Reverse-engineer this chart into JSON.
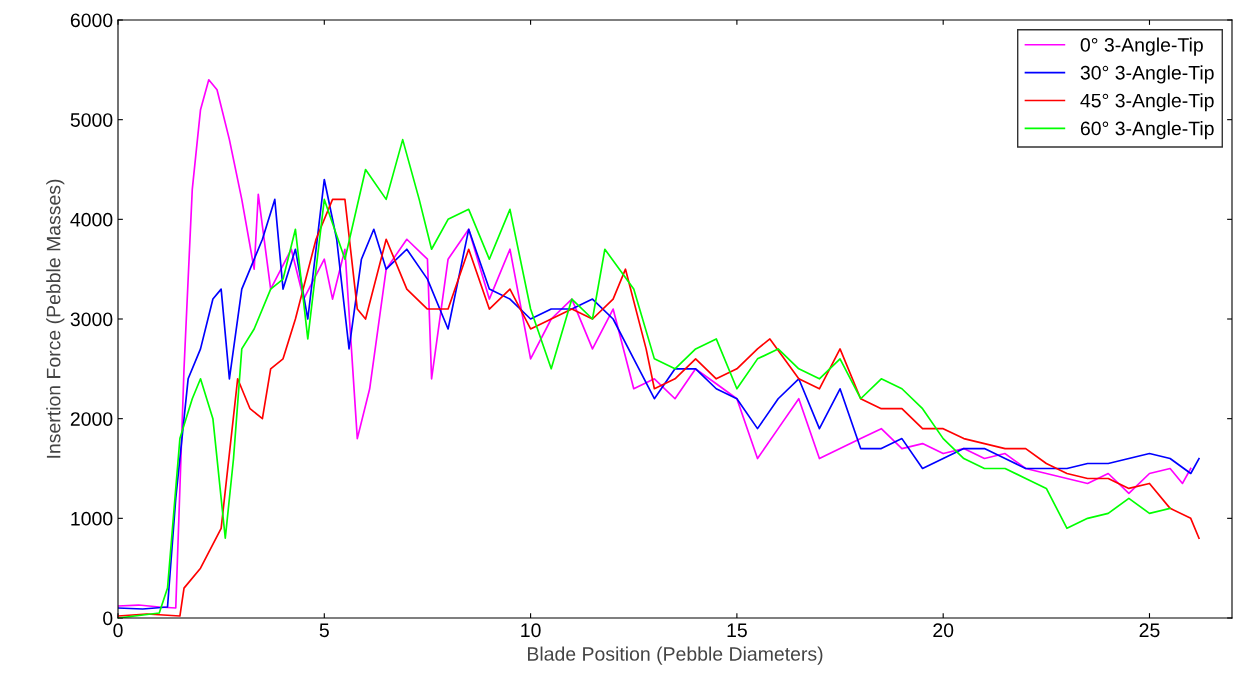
{
  "chart_data": {
    "type": "line",
    "xlabel": "Blade Position (Pebble Diameters)",
    "ylabel": "Insertion Force (Pebble Masses)",
    "xlim": [
      0,
      27
    ],
    "xticks": [
      0,
      5,
      10,
      15,
      20,
      25
    ],
    "ylim": [
      0,
      6000
    ],
    "yticks": [
      0,
      1000,
      2000,
      3000,
      4000,
      5000,
      6000
    ],
    "grid": false,
    "legend": "top right",
    "marker": "none",
    "line_style": "solid",
    "series": [
      {
        "name": "0° 3-Angle-Tip",
        "color": "#ff00ff",
        "x": [
          0,
          0.5,
          1,
          1.4,
          1.6,
          1.8,
          2.0,
          2.2,
          2.4,
          2.7,
          3.0,
          3.3,
          3.4,
          3.7,
          4.2,
          4.5,
          5,
          5.2,
          5.5,
          5.8,
          6.1,
          6.5,
          7,
          7.5,
          7.6,
          8,
          8.5,
          9,
          9.5,
          10,
          10.5,
          11,
          11.5,
          12,
          12.5,
          13,
          13.5,
          14,
          14.5,
          15,
          15.5,
          16,
          16.5,
          17,
          17.5,
          18,
          18.5,
          19,
          19.5,
          20,
          20.5,
          21,
          21.5,
          22,
          22.5,
          23,
          23.5,
          24,
          24.5,
          25,
          25.5,
          25.8,
          26
        ],
        "values": [
          120,
          130,
          110,
          100,
          2500,
          4300,
          5100,
          5400,
          5300,
          4800,
          4200,
          3500,
          4250,
          3300,
          3700,
          3200,
          3600,
          3200,
          3700,
          1800,
          2300,
          3500,
          3800,
          3600,
          2400,
          3600,
          3900,
          3200,
          3700,
          2600,
          3000,
          3200,
          2700,
          3100,
          2300,
          2400,
          2200,
          2500,
          2350,
          2200,
          1600,
          1900,
          2200,
          1600,
          1700,
          1800,
          1900,
          1700,
          1750,
          1650,
          1700,
          1600,
          1650,
          1500,
          1450,
          1400,
          1350,
          1450,
          1250,
          1450,
          1500,
          1350,
          1500
        ]
      },
      {
        "name": "30° 3-Angle-Tip",
        "color": "#0000ff",
        "x": [
          0,
          0.6,
          1.2,
          1.4,
          1.7,
          2.0,
          2.3,
          2.5,
          2.7,
          3.0,
          3.5,
          3.8,
          4.0,
          4.3,
          4.6,
          5.0,
          5.3,
          5.6,
          5.9,
          6.2,
          6.5,
          7,
          7.5,
          8,
          8.5,
          9,
          9.5,
          10,
          10.5,
          11,
          11.5,
          12,
          12.5,
          13,
          13.5,
          14,
          14.5,
          15,
          15.5,
          16,
          16.5,
          17,
          17.5,
          18,
          18.5,
          19,
          19.5,
          20,
          20.5,
          21,
          21.5,
          22,
          22.5,
          23,
          23.5,
          24,
          24.5,
          25,
          25.5,
          26,
          26.2
        ],
        "values": [
          100,
          90,
          110,
          1200,
          2400,
          2700,
          3200,
          3300,
          2400,
          3300,
          3800,
          4200,
          3300,
          3700,
          3000,
          4400,
          3800,
          2700,
          3600,
          3900,
          3500,
          3700,
          3400,
          2900,
          3900,
          3300,
          3200,
          3000,
          3100,
          3100,
          3200,
          3000,
          2600,
          2200,
          2500,
          2500,
          2300,
          2200,
          1900,
          2200,
          2400,
          1900,
          2300,
          1700,
          1700,
          1800,
          1500,
          1600,
          1700,
          1700,
          1600,
          1500,
          1500,
          1500,
          1550,
          1550,
          1600,
          1650,
          1600,
          1450,
          1600
        ]
      },
      {
        "name": "45° 3-Angle-Tip",
        "color": "#ff0000",
        "x": [
          0,
          0.7,
          1.5,
          1.6,
          2.0,
          2.5,
          2.9,
          3.2,
          3.5,
          3.7,
          4.0,
          4.3,
          4.8,
          5.2,
          5.5,
          5.8,
          6.0,
          6.5,
          7,
          7.5,
          8,
          8.5,
          9,
          9.5,
          10,
          10.5,
          11,
          11.5,
          12,
          12.3,
          12.8,
          13,
          13.5,
          14,
          14.5,
          15,
          15.5,
          15.8,
          16.5,
          17,
          17.5,
          18,
          18.5,
          19,
          19.5,
          20,
          20.5,
          21,
          21.5,
          22,
          22.5,
          23,
          23.5,
          24,
          24.5,
          25,
          25.5,
          26,
          26.2
        ],
        "values": [
          20,
          40,
          20,
          300,
          500,
          900,
          2400,
          2100,
          2000,
          2500,
          2600,
          3000,
          3800,
          4200,
          4200,
          3100,
          3000,
          3800,
          3300,
          3100,
          3100,
          3700,
          3100,
          3300,
          2900,
          3000,
          3100,
          3000,
          3200,
          3500,
          2700,
          2300,
          2400,
          2600,
          2400,
          2500,
          2700,
          2800,
          2400,
          2300,
          2700,
          2200,
          2100,
          2100,
          1900,
          1900,
          1800,
          1750,
          1700,
          1700,
          1550,
          1450,
          1400,
          1400,
          1300,
          1350,
          1100,
          1000,
          800
        ]
      },
      {
        "name": "60° 3-Angle-Tip",
        "color": "#00ff00",
        "x": [
          0,
          1,
          1.2,
          1.5,
          1.8,
          2.0,
          2.3,
          2.5,
          2.6,
          2.8,
          3.0,
          3.3,
          3.7,
          4.0,
          4.3,
          4.6,
          5.0,
          5.5,
          6.0,
          6.5,
          6.9,
          7.3,
          7.6,
          8.0,
          8.5,
          9,
          9.5,
          10,
          10.5,
          11,
          11.5,
          11.8,
          12.5,
          13,
          13.5,
          14,
          14.5,
          15,
          15.5,
          16,
          16.5,
          17,
          17.5,
          18,
          18.5,
          19,
          19.5,
          20,
          20.5,
          21,
          21.5,
          22,
          22.5,
          23,
          23.5,
          24,
          24.5,
          25,
          25.5
        ],
        "values": [
          0,
          50,
          300,
          1800,
          2200,
          2400,
          2000,
          1200,
          800,
          1600,
          2700,
          2900,
          3300,
          3400,
          3900,
          2800,
          4200,
          3600,
          4500,
          4200,
          4800,
          4200,
          3700,
          4000,
          4100,
          3600,
          4100,
          3100,
          2500,
          3200,
          3000,
          3700,
          3300,
          2600,
          2500,
          2700,
          2800,
          2300,
          2600,
          2700,
          2500,
          2400,
          2600,
          2200,
          2400,
          2300,
          2100,
          1800,
          1600,
          1500,
          1500,
          1400,
          1300,
          900,
          1000,
          1050,
          1200,
          1050,
          1100
        ]
      }
    ]
  }
}
